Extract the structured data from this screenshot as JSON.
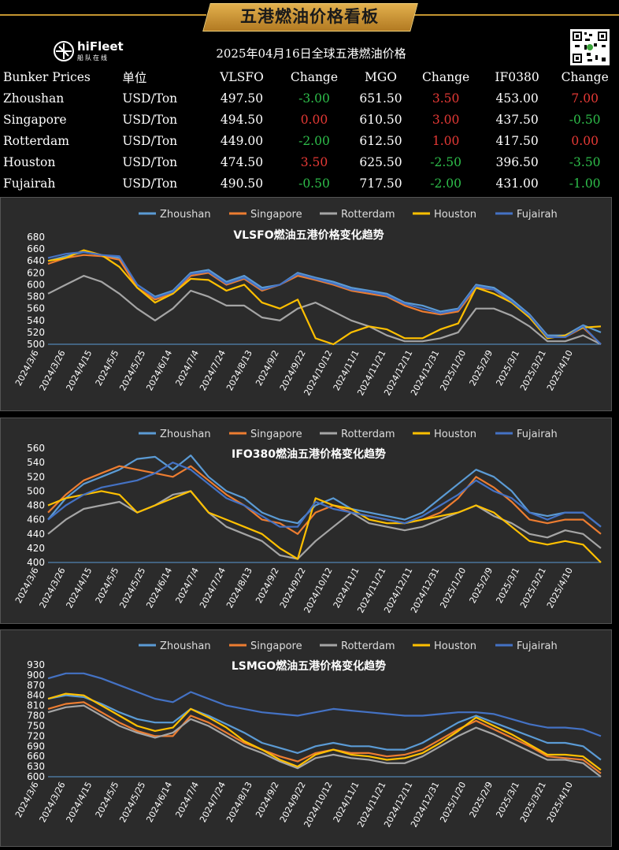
{
  "header": {
    "title": "五港燃油价格看板",
    "logo_text": "hiFleet",
    "logo_sub": "船队在线",
    "table_title": "2025年04月16日全球五港燃油价格"
  },
  "table": {
    "columns": [
      "Bunker Prices",
      "单位",
      "VLSFO",
      "Change",
      "MGO",
      "Change",
      "IF0380",
      "Change"
    ],
    "rows": [
      [
        "Zhoushan",
        "USD/Ton",
        "497.50",
        "-3.00",
        "651.50",
        "3.50",
        "453.00",
        "7.00"
      ],
      [
        "Singapore",
        "USD/Ton",
        "494.50",
        "0.00",
        "610.50",
        "3.00",
        "437.50",
        "-0.50"
      ],
      [
        "Rotterdam",
        "USD/Ton",
        "449.00",
        "-2.00",
        "612.50",
        "1.00",
        "417.50",
        "0.00"
      ],
      [
        "Houston",
        "USD/Ton",
        "474.50",
        "3.50",
        "625.50",
        "-2.50",
        "396.50",
        "-3.50"
      ],
      [
        "Fujairah",
        "USD/Ton",
        "490.50",
        "-0.50",
        "717.50",
        "-2.00",
        "431.00",
        "-1.00"
      ]
    ]
  },
  "colors": {
    "Zhoushan": "#5b9bd5",
    "Singapore": "#ed7d31",
    "Rotterdam": "#a5a5a5",
    "Houston": "#ffc000",
    "Fujairah": "#4472c4",
    "up": "#e53935",
    "down": "#2ebd4a"
  },
  "chart_data": [
    {
      "type": "line",
      "title": "VLSFO燃油五港价格变化趋势",
      "ylim": [
        500,
        680
      ],
      "yticks": [
        500,
        520,
        540,
        560,
        580,
        600,
        620,
        640,
        660,
        680
      ],
      "x_labels": [
        "2024/3/6",
        "2024/3/26",
        "2024/4/15",
        "2024/5/5",
        "2024/5/25",
        "2024/6/14",
        "2024/7/4",
        "2024/7/24",
        "2024/8/13",
        "2024/9/2",
        "2024/9/22",
        "2024/10/12",
        "2024/11/1",
        "2024/11/21",
        "2024/12/11",
        "2024/12/31",
        "2025/1/20",
        "2025/2/9",
        "2025/3/1",
        "2025/3/21",
        "2025/4/10"
      ],
      "legend": "top",
      "series": [
        {
          "name": "Zhoushan",
          "values": [
            640,
            648,
            655,
            650,
            645,
            600,
            580,
            590,
            620,
            625,
            605,
            615,
            595,
            600,
            620,
            612,
            605,
            595,
            590,
            585,
            570,
            565,
            555,
            560,
            600,
            595,
            575,
            550,
            515,
            515,
            532,
            520
          ]
        },
        {
          "name": "Singapore",
          "values": [
            635,
            645,
            650,
            648,
            642,
            595,
            575,
            585,
            615,
            620,
            600,
            610,
            590,
            600,
            615,
            608,
            600,
            590,
            585,
            580,
            565,
            555,
            550,
            555,
            595,
            592,
            570,
            548,
            512,
            512,
            528,
            500
          ]
        },
        {
          "name": "Rotterdam",
          "values": [
            585,
            600,
            615,
            605,
            585,
            560,
            540,
            560,
            590,
            580,
            565,
            565,
            545,
            540,
            560,
            570,
            555,
            540,
            530,
            515,
            505,
            505,
            510,
            520,
            560,
            560,
            548,
            530,
            505,
            505,
            515,
            500
          ]
        },
        {
          "name": "Houston",
          "values": [
            640,
            645,
            658,
            650,
            630,
            595,
            570,
            585,
            610,
            608,
            590,
            600,
            570,
            560,
            575,
            510,
            500,
            520,
            530,
            525,
            510,
            510,
            525,
            535,
            595,
            585,
            570,
            545,
            510,
            515,
            528,
            530
          ]
        },
        {
          "name": "Fujairah",
          "values": [
            645,
            652,
            655,
            650,
            648,
            600,
            578,
            588,
            618,
            622,
            602,
            612,
            592,
            600,
            618,
            610,
            602,
            592,
            588,
            582,
            568,
            560,
            552,
            558,
            598,
            592,
            572,
            548,
            512,
            512,
            530,
            500
          ]
        }
      ]
    },
    {
      "type": "line",
      "title": "IFO380燃油五港价格变化趋势",
      "ylim": [
        400,
        560
      ],
      "yticks": [
        400,
        420,
        440,
        460,
        480,
        500,
        520,
        540,
        560
      ],
      "x_labels": [
        "2024/3/6",
        "2024/3/26",
        "2024/4/15",
        "2024/5/5",
        "2024/5/25",
        "2024/6/14",
        "2024/7/4",
        "2024/7/24",
        "2024/8/13",
        "2024/9/2",
        "2024/9/22",
        "2024/10/12",
        "2024/11/1",
        "2024/11/21",
        "2024/12/11",
        "2024/12/31",
        "2025/1/20",
        "2025/2/9",
        "2025/3/1",
        "2025/3/21",
        "2025/4/10"
      ],
      "legend": "top",
      "series": [
        {
          "name": "Zhoushan",
          "values": [
            460,
            490,
            510,
            520,
            530,
            545,
            548,
            530,
            550,
            520,
            500,
            490,
            470,
            460,
            455,
            480,
            490,
            475,
            470,
            465,
            460,
            470,
            490,
            510,
            530,
            520,
            500,
            470,
            465,
            470,
            470,
            450
          ]
        },
        {
          "name": "Singapore",
          "values": [
            470,
            495,
            515,
            525,
            535,
            530,
            525,
            520,
            535,
            515,
            495,
            480,
            460,
            455,
            440,
            470,
            480,
            470,
            465,
            460,
            455,
            460,
            470,
            490,
            520,
            505,
            485,
            460,
            455,
            460,
            460,
            440
          ]
        },
        {
          "name": "Rotterdam",
          "values": [
            440,
            460,
            475,
            480,
            485,
            470,
            480,
            495,
            500,
            470,
            450,
            440,
            430,
            410,
            405,
            430,
            450,
            470,
            455,
            450,
            445,
            450,
            460,
            470,
            480,
            465,
            455,
            440,
            435,
            445,
            440,
            420
          ]
        },
        {
          "name": "Houston",
          "values": [
            480,
            490,
            495,
            500,
            495,
            470,
            480,
            490,
            500,
            470,
            460,
            450,
            440,
            420,
            405,
            490,
            480,
            475,
            460,
            455,
            455,
            460,
            465,
            470,
            480,
            470,
            450,
            430,
            425,
            430,
            425,
            400
          ]
        },
        {
          "name": "Fujairah",
          "values": [
            460,
            480,
            495,
            505,
            510,
            515,
            525,
            540,
            530,
            510,
            490,
            480,
            465,
            450,
            450,
            485,
            475,
            470,
            465,
            460,
            455,
            465,
            480,
            495,
            515,
            500,
            490,
            470,
            460,
            470,
            470,
            450
          ]
        }
      ]
    },
    {
      "type": "line",
      "title": "LSMGO燃油五港价格变化趋势",
      "ylim": [
        600,
        930
      ],
      "yticks": [
        600,
        630,
        660,
        690,
        720,
        750,
        780,
        810,
        840,
        870,
        900,
        930
      ],
      "x_labels": [
        "2024/3/6",
        "2024/3/26",
        "2024/4/15",
        "2024/5/5",
        "2024/5/25",
        "2024/6/14",
        "2024/7/4",
        "2024/7/24",
        "2024/8/13",
        "2024/9/2",
        "2024/9/22",
        "2024/10/12",
        "2024/11/1",
        "2024/11/21",
        "2024/12/11",
        "2024/12/31",
        "2025/1/20",
        "2025/2/9",
        "2025/3/1",
        "2025/3/21",
        "2025/4/10"
      ],
      "legend": "top",
      "series": [
        {
          "name": "Zhoushan",
          "values": [
            830,
            840,
            835,
            815,
            790,
            770,
            760,
            760,
            800,
            780,
            755,
            730,
            700,
            685,
            670,
            690,
            700,
            690,
            690,
            680,
            680,
            700,
            730,
            760,
            780,
            760,
            740,
            720,
            700,
            700,
            690,
            650
          ]
        },
        {
          "name": "Singapore",
          "values": [
            800,
            815,
            820,
            790,
            760,
            735,
            720,
            720,
            780,
            760,
            730,
            700,
            680,
            660,
            645,
            670,
            680,
            670,
            670,
            660,
            665,
            680,
            710,
            740,
            765,
            740,
            715,
            690,
            660,
            655,
            650,
            610
          ]
        },
        {
          "name": "Rotterdam",
          "values": [
            790,
            805,
            810,
            780,
            750,
            730,
            715,
            730,
            770,
            750,
            720,
            690,
            670,
            645,
            625,
            655,
            665,
            655,
            650,
            640,
            640,
            660,
            690,
            720,
            745,
            725,
            700,
            675,
            650,
            650,
            640,
            600
          ]
        },
        {
          "name": "Houston",
          "values": [
            830,
            845,
            840,
            810,
            780,
            750,
            735,
            745,
            800,
            775,
            745,
            705,
            680,
            650,
            630,
            665,
            680,
            665,
            660,
            650,
            655,
            670,
            700,
            735,
            775,
            750,
            725,
            695,
            665,
            665,
            660,
            620
          ]
        },
        {
          "name": "Fujairah",
          "values": [
            890,
            905,
            905,
            890,
            870,
            850,
            830,
            820,
            850,
            830,
            810,
            800,
            790,
            785,
            780,
            790,
            800,
            795,
            790,
            785,
            780,
            780,
            785,
            790,
            790,
            785,
            770,
            755,
            745,
            745,
            740,
            720
          ]
        }
      ]
    }
  ]
}
